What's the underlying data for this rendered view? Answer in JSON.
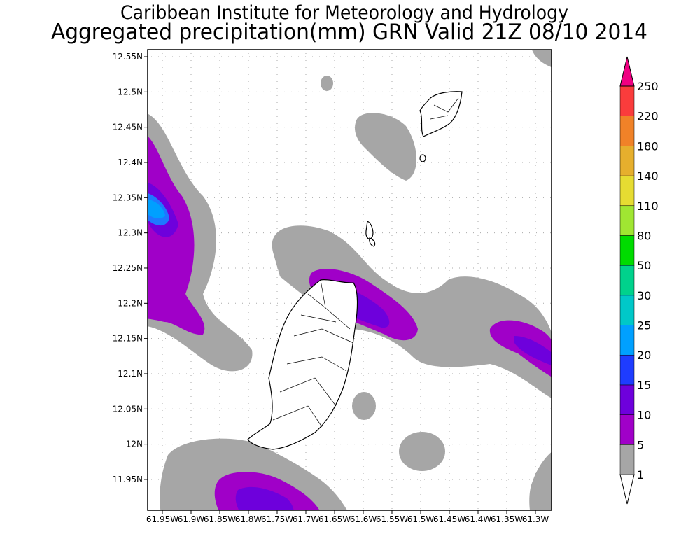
{
  "header": {
    "title": "Caribbean Institute for Meteorology and Hydrology",
    "subtitle": "Aggregated precipitation(mm) GRN Valid 21Z 08/10 2014"
  },
  "map": {
    "lat_ticks": [
      {
        "value": 12.55,
        "label": "12.55N"
      },
      {
        "value": 12.5,
        "label": "12.5N"
      },
      {
        "value": 12.45,
        "label": "12.45N"
      },
      {
        "value": 12.4,
        "label": "12.4N"
      },
      {
        "value": 12.35,
        "label": "12.35N"
      },
      {
        "value": 12.3,
        "label": "12.3N"
      },
      {
        "value": 12.25,
        "label": "12.25N"
      },
      {
        "value": 12.2,
        "label": "12.2N"
      },
      {
        "value": 12.15,
        "label": "12.15N"
      },
      {
        "value": 12.1,
        "label": "12.1N"
      },
      {
        "value": 12.05,
        "label": "12.05N"
      },
      {
        "value": 12,
        "label": "12N"
      },
      {
        "value": 11.95,
        "label": "11.95N"
      }
    ],
    "lon_ticks": [
      {
        "value": 61.95,
        "label": "61.95W"
      },
      {
        "value": 61.9,
        "label": "61.9W"
      },
      {
        "value": 61.85,
        "label": "61.85W"
      },
      {
        "value": 61.8,
        "label": "61.8W"
      },
      {
        "value": 61.75,
        "label": "61.75W"
      },
      {
        "value": 61.7,
        "label": "61.7W"
      },
      {
        "value": 61.65,
        "label": "61.65W"
      },
      {
        "value": 61.6,
        "label": "61.6W"
      },
      {
        "value": 61.55,
        "label": "61.55W"
      },
      {
        "value": 61.5,
        "label": "61.5W"
      },
      {
        "value": 61.45,
        "label": "61.45W"
      },
      {
        "value": 61.4,
        "label": "61.4W"
      },
      {
        "value": 61.35,
        "label": "61.35W"
      },
      {
        "value": 61.3,
        "label": "61.3W"
      }
    ]
  },
  "colorbar": {
    "levels": [
      1,
      5,
      10,
      15,
      20,
      25,
      30,
      50,
      80,
      110,
      140,
      180,
      220,
      250
    ],
    "colors": [
      "#ffffff",
      "#a6a6a6",
      "#a000c8",
      "#6e00dc",
      "#1e3cff",
      "#00a0ff",
      "#00c8c8",
      "#00d28c",
      "#00dc00",
      "#a0e632",
      "#e6dc32",
      "#e6af2d",
      "#f08228",
      "#fa3c3c",
      "#f00082"
    ]
  }
}
